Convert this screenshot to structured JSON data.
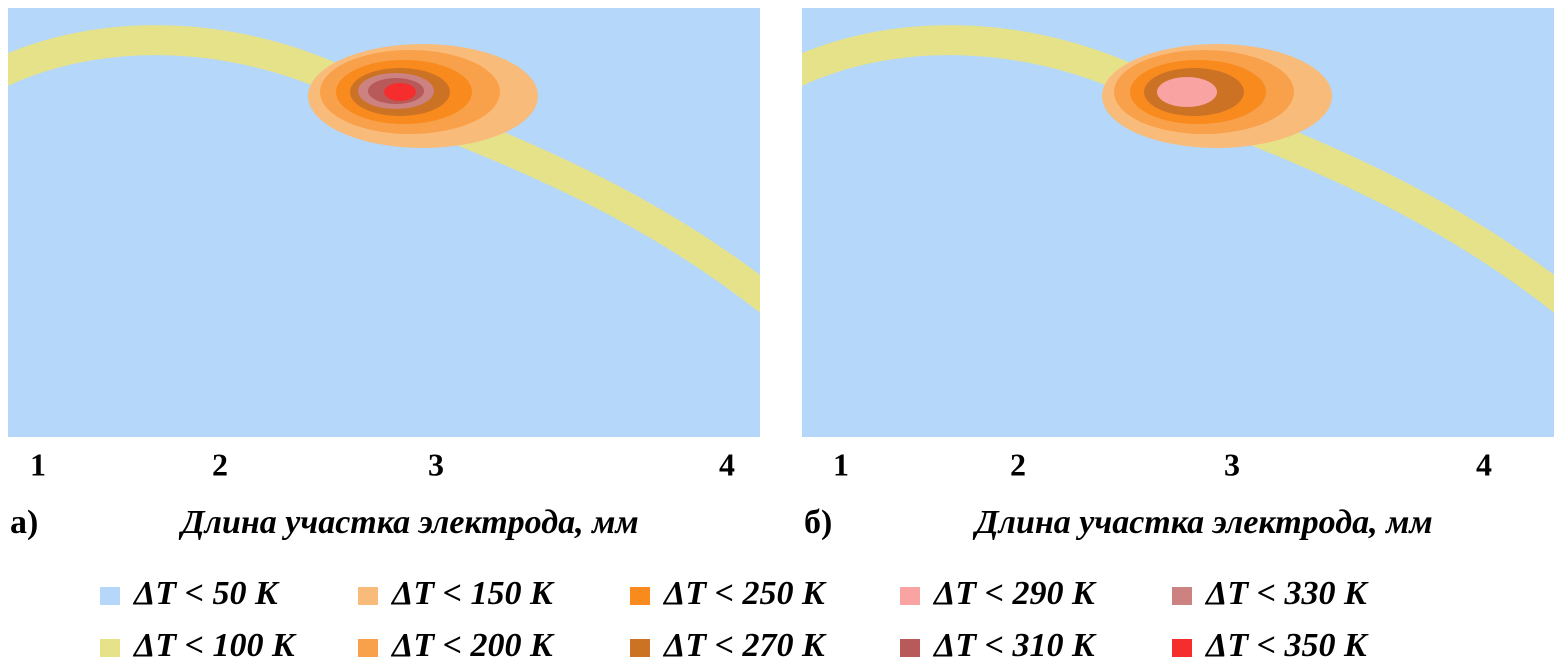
{
  "panels": [
    {
      "label": "а)",
      "xlabel": "Длина участка электрода, мм",
      "xticks": [
        "1",
        "2",
        "3",
        "4"
      ]
    },
    {
      "label": "б)",
      "xlabel": "Длина участка электрода, мм",
      "xticks": [
        "1",
        "2",
        "3",
        "4"
      ]
    }
  ],
  "legend": [
    {
      "label": "ΔT < 50 K",
      "color": "#b4d7fa"
    },
    {
      "label": "ΔT < 100 K",
      "color": "#e6e28a"
    },
    {
      "label": "ΔT < 150 K",
      "color": "#f9bb7a"
    },
    {
      "label": "ΔT < 200 K",
      "color": "#f9a04a"
    },
    {
      "label": "ΔT < 250 K",
      "color": "#f98a1e"
    },
    {
      "label": "ΔT < 270 K",
      "color": "#cc7225"
    },
    {
      "label": "ΔT < 290 K",
      "color": "#f9a3a3"
    },
    {
      "label": "ΔT < 310 K",
      "color": "#b85a5a"
    },
    {
      "label": "ΔT < 330 K",
      "color": "#cd8282"
    },
    {
      "label": "ΔT < 350 K",
      "color": "#f52d2d"
    }
  ]
}
